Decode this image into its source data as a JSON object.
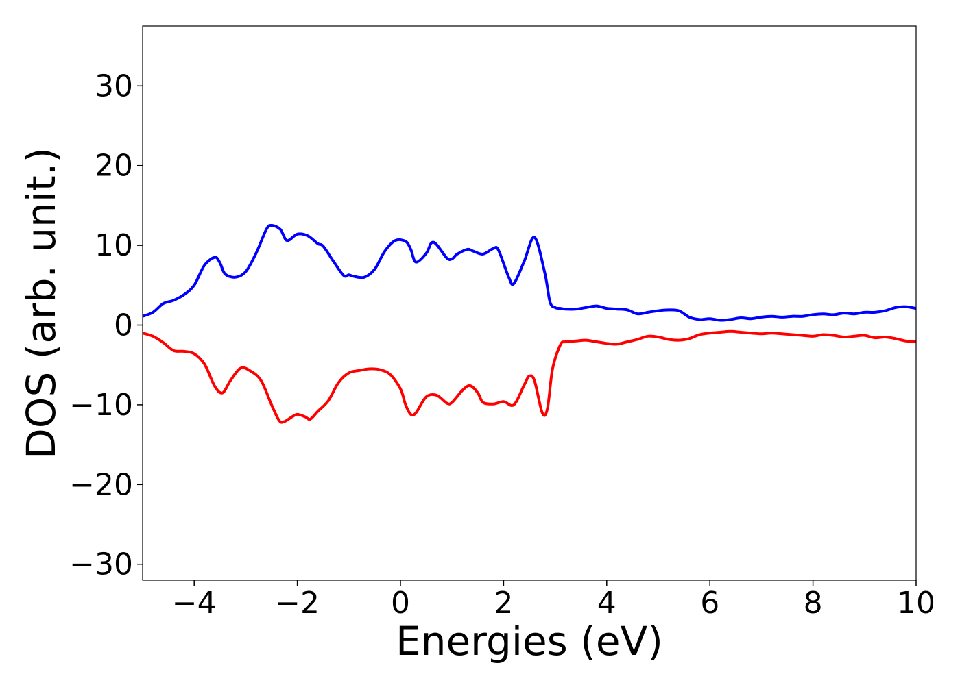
{
  "chart_data": {
    "type": "line",
    "title": "",
    "xlabel": "Energies (eV)",
    "ylabel": "DOS (arb. unit.)",
    "xlim": [
      -5,
      10
    ],
    "ylim": [
      -32,
      37.5
    ],
    "xticks": [
      -4,
      -2,
      0,
      2,
      4,
      6,
      8,
      10
    ],
    "xtick_labels": [
      "−4",
      "−2",
      "0",
      "2",
      "4",
      "6",
      "8",
      "10"
    ],
    "yticks": [
      -30,
      -20,
      -10,
      0,
      10,
      20,
      30
    ],
    "ytick_labels": [
      "−30",
      "−20",
      "−10",
      "0",
      "10",
      "20",
      "30"
    ],
    "grid": false,
    "legend": "none",
    "series": [
      {
        "color": "#0000ff",
        "x": [
          -5.0,
          -4.8,
          -4.6,
          -4.4,
          -4.2,
          -4.0,
          -3.8,
          -3.6,
          -3.5,
          -3.4,
          -3.2,
          -3.0,
          -2.8,
          -2.6,
          -2.5,
          -2.33,
          -2.2,
          -2.0,
          -1.8,
          -1.6,
          -1.5,
          -1.3,
          -1.1,
          -1.0,
          -0.9,
          -0.7,
          -0.5,
          -0.3,
          -0.1,
          0.1,
          0.2,
          0.3,
          0.5,
          0.6,
          0.7,
          0.9,
          1.0,
          1.1,
          1.3,
          1.4,
          1.6,
          1.8,
          1.9,
          2.1,
          2.2,
          2.4,
          2.6,
          2.8,
          2.9,
          3.0,
          3.1,
          3.2,
          3.4,
          3.6,
          3.8,
          4.0,
          4.2,
          4.4,
          4.6,
          4.8,
          5.0,
          5.2,
          5.4,
          5.6,
          5.8,
          6.0,
          6.2,
          6.4,
          6.6,
          6.8,
          7.0,
          7.2,
          7.4,
          7.6,
          7.8,
          8.0,
          8.2,
          8.4,
          8.6,
          8.8,
          9.0,
          9.2,
          9.4,
          9.6,
          9.8,
          10.0
        ],
        "y": [
          1.1,
          1.6,
          2.7,
          3.1,
          3.8,
          5.0,
          7.5,
          8.5,
          7.8,
          6.4,
          6.0,
          6.7,
          9.0,
          12.0,
          12.5,
          12.0,
          10.6,
          11.4,
          11.2,
          10.2,
          9.9,
          8.0,
          6.2,
          6.3,
          6.1,
          6.0,
          7.0,
          9.3,
          10.6,
          10.5,
          9.5,
          7.9,
          9.0,
          10.3,
          10.1,
          8.4,
          8.3,
          8.9,
          9.5,
          9.3,
          8.9,
          9.6,
          9.4,
          6.0,
          5.2,
          8.0,
          11.0,
          6.5,
          2.9,
          2.2,
          2.1,
          2.0,
          2.0,
          2.2,
          2.4,
          2.1,
          2.0,
          1.9,
          1.4,
          1.6,
          1.8,
          1.9,
          1.8,
          1.0,
          0.7,
          0.8,
          0.6,
          0.7,
          0.9,
          0.8,
          1.0,
          1.1,
          1.0,
          1.1,
          1.1,
          1.3,
          1.4,
          1.3,
          1.5,
          1.4,
          1.6,
          1.6,
          1.8,
          2.2,
          2.3,
          2.1
        ]
      },
      {
        "color": "#ff0000",
        "x": [
          -5.0,
          -4.8,
          -4.6,
          -4.4,
          -4.2,
          -4.0,
          -3.8,
          -3.6,
          -3.45,
          -3.3,
          -3.1,
          -2.9,
          -2.7,
          -2.5,
          -2.35,
          -2.25,
          -2.1,
          -2.0,
          -1.85,
          -1.75,
          -1.6,
          -1.4,
          -1.2,
          -1.0,
          -0.8,
          -0.6,
          -0.4,
          -0.2,
          0.0,
          0.1,
          0.2,
          0.3,
          0.5,
          0.7,
          0.9,
          1.0,
          1.2,
          1.35,
          1.5,
          1.6,
          1.8,
          2.0,
          2.2,
          2.4,
          2.5,
          2.6,
          2.75,
          2.85,
          2.95,
          3.1,
          3.2,
          3.4,
          3.6,
          3.8,
          4.0,
          4.2,
          4.4,
          4.6,
          4.8,
          5.0,
          5.2,
          5.4,
          5.6,
          5.8,
          6.0,
          6.2,
          6.4,
          6.6,
          6.8,
          7.0,
          7.2,
          7.4,
          7.6,
          7.8,
          8.0,
          8.2,
          8.4,
          8.6,
          8.8,
          9.0,
          9.2,
          9.4,
          9.6,
          9.8,
          10.0
        ],
        "y": [
          -1.0,
          -1.4,
          -2.2,
          -3.2,
          -3.3,
          -3.6,
          -4.9,
          -7.7,
          -8.5,
          -7.0,
          -5.4,
          -5.8,
          -7.0,
          -10.0,
          -12.0,
          -12.1,
          -11.5,
          -11.2,
          -11.5,
          -11.8,
          -10.8,
          -9.5,
          -7.2,
          -6.0,
          -5.7,
          -5.5,
          -5.6,
          -6.2,
          -8.0,
          -10.0,
          -11.2,
          -11.0,
          -9.0,
          -8.8,
          -9.8,
          -9.7,
          -8.2,
          -7.6,
          -8.5,
          -9.7,
          -9.9,
          -9.6,
          -10.0,
          -7.5,
          -6.4,
          -7.0,
          -11.0,
          -10.5,
          -5.5,
          -2.5,
          -2.1,
          -2.0,
          -1.9,
          -2.1,
          -2.3,
          -2.4,
          -2.1,
          -1.8,
          -1.4,
          -1.5,
          -1.8,
          -1.9,
          -1.7,
          -1.2,
          -1.0,
          -0.9,
          -0.8,
          -0.9,
          -1.0,
          -1.1,
          -1.0,
          -1.1,
          -1.2,
          -1.3,
          -1.4,
          -1.2,
          -1.3,
          -1.5,
          -1.4,
          -1.3,
          -1.6,
          -1.5,
          -1.7,
          -2.0,
          -2.1
        ]
      }
    ]
  }
}
